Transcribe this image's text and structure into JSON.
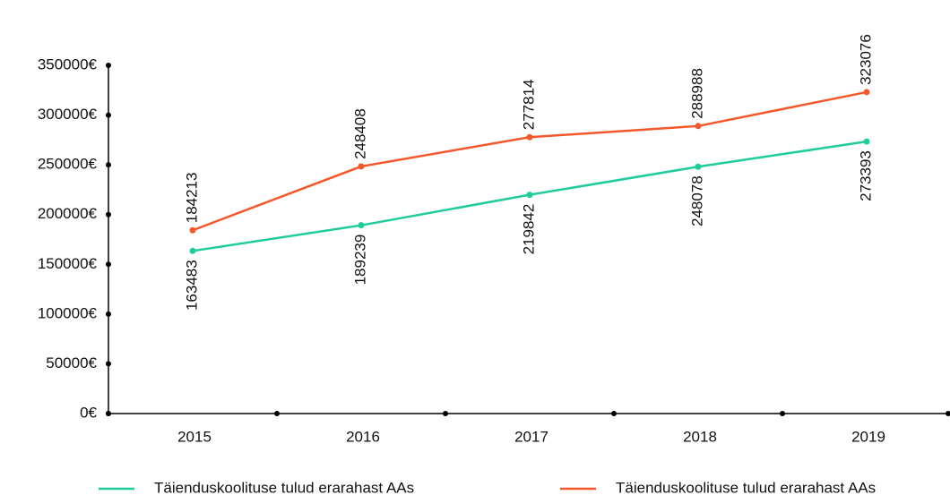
{
  "chart_data": {
    "type": "line",
    "categories": [
      "2015",
      "2016",
      "2017",
      "2018",
      "2019"
    ],
    "series": [
      {
        "name": "Täienduskoolituse tulud erarahast AAs",
        "color": "#1ecc9c",
        "values": [
          163483,
          189239,
          219842,
          248078,
          273393
        ]
      },
      {
        "name": "Täienduskoolituse tulud erarahast AAs",
        "color": "#f4582a",
        "values": [
          184213,
          248408,
          277814,
          288988,
          323076
        ]
      }
    ],
    "ylim": [
      0,
      350000
    ],
    "yticks": [
      {
        "value": 0,
        "label": "0€"
      },
      {
        "value": 50000,
        "label": "50000€"
      },
      {
        "value": 100000,
        "label": "100000€"
      },
      {
        "value": 150000,
        "label": "150000€"
      },
      {
        "value": 200000,
        "label": "200000€"
      },
      {
        "value": 250000,
        "label": "250000€"
      },
      {
        "value": 300000,
        "label": "300000€"
      },
      {
        "value": 350000,
        "label": "350000€"
      }
    ],
    "grid": false
  }
}
